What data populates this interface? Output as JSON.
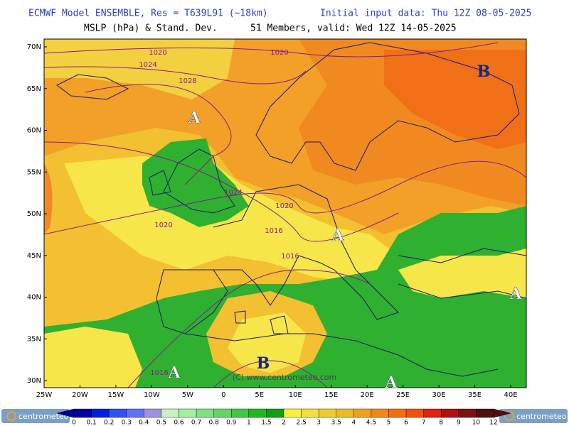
{
  "header": {
    "model": "ECMWF Model ENSEMBLE, Res = T639L91 (~18km)",
    "init": "Initial input data: Thu 12Z 08-05-2025",
    "field": "MSLP (hPa) & Stand. Dev.",
    "valid": "51 Members, valid: Wed 12Z 14-05-2025"
  },
  "map": {
    "lat_labels": [
      "70N",
      "65N",
      "60N",
      "55N",
      "50N",
      "45N",
      "40N",
      "35N",
      "30N"
    ],
    "lon_labels": [
      "25W",
      "20W",
      "15W",
      "10W",
      "5W",
      "0",
      "5E",
      "10E",
      "15E",
      "20E",
      "25E",
      "30E",
      "35E",
      "40E"
    ],
    "isobars": [
      "1020",
      "1020",
      "1024",
      "1028",
      "1024",
      "1020",
      "1020",
      "1016",
      "1016",
      "1016"
    ],
    "centers": [
      "A",
      "B",
      "A",
      "A",
      "A",
      "B",
      "A"
    ],
    "watermark": "(C) www.centrometeo.com"
  },
  "colorbar": {
    "labels": [
      "0",
      "0.1",
      "0.2",
      "0.3",
      "0.4",
      "0.5",
      "0.6",
      "0.7",
      "0.8",
      "0.9",
      "1",
      "1.5",
      "2",
      "2.5",
      "3",
      "3.5",
      "4",
      "4.5",
      "5",
      "6",
      "7",
      "8",
      "9",
      "10",
      "12"
    ]
  },
  "logos": {
    "left": "centrometeo",
    "right": "centrometeo"
  }
}
